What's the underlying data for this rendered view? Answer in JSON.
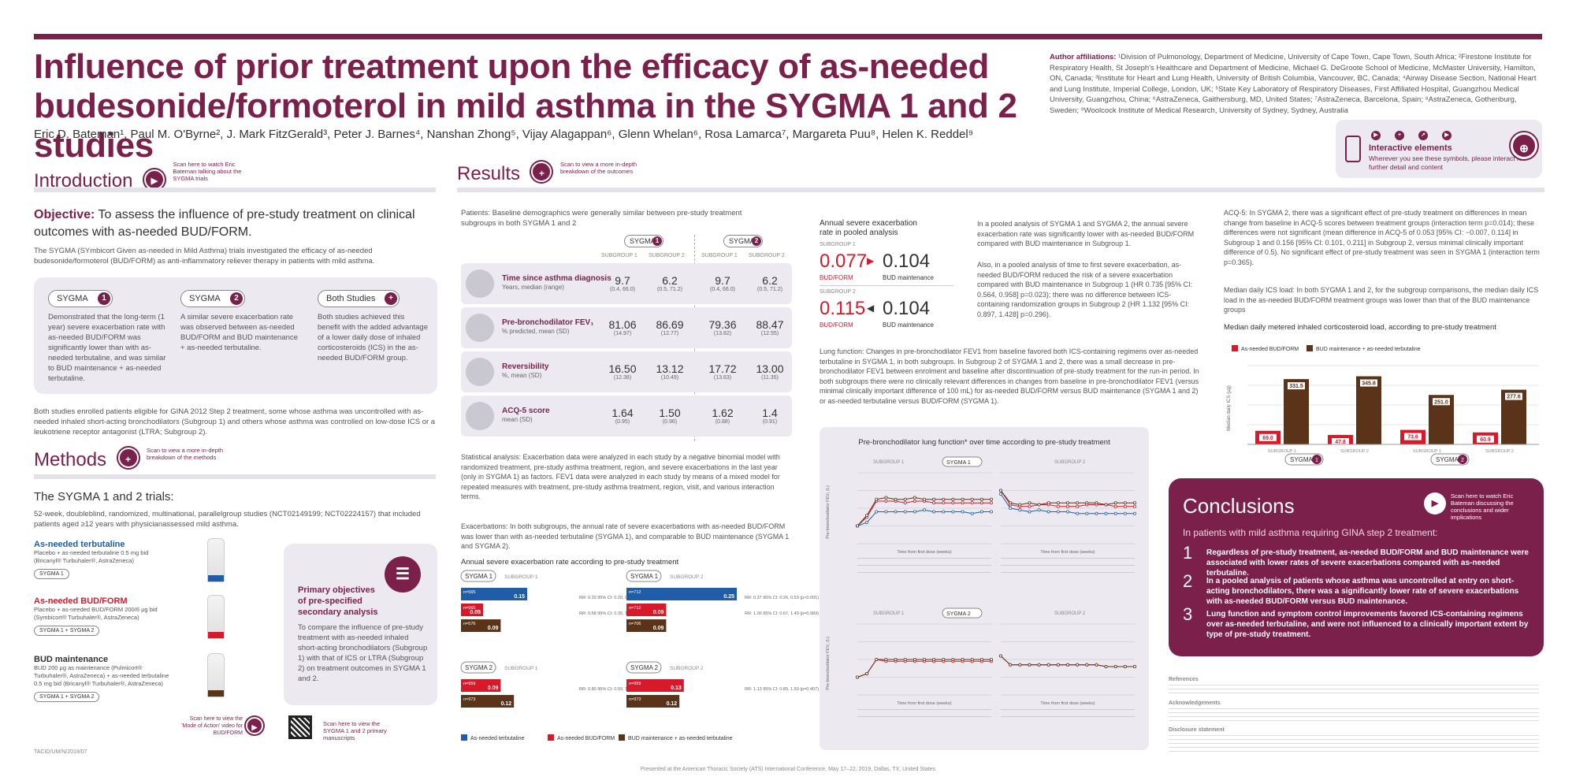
{
  "title": "Influence of prior treatment upon the efficacy of as-needed budesonide/formoterol in mild asthma in the SYGMA 1 and 2 studies",
  "authors": "Eric D. Bateman¹, Paul M. O'Byrne², J. Mark FitzGerald³, Peter J. Barnes⁴, Nanshan Zhong⁵, Vijay Alagappan⁶, Glenn Whelan⁶, Rosa Lamarca⁷, Margareta Puu⁸, Helen K. Reddel⁹",
  "affiliations_label": "Author affiliations:",
  "affiliations": "¹Division of Pulmonology, Department of Medicine, University of Cape Town, Cape Town, South Africa; ²Firestone Institute for Respiratory Health, St Joseph's Healthcare and Department of Medicine, Michael G. DeGroote School of Medicine, McMaster University, Hamilton, ON, Canada; ³Institute for Heart and Lung Health, University of British Columbia, Vancouver, BC, Canada; ⁴Airway Disease Section, National Heart and Lung Institute, Imperial College, London, UK; ⁵State Key Laboratory of Respiratory Diseases, First Affiliated Hospital, Guangzhou Medical University, Guangzhou, China; ⁶AstraZeneca, Gaithersburg, MD, United States; ⁷AstraZeneca, Barcelona, Spain; ⁸AstraZeneca, Gothenburg, Sweden; ⁹Woolcock Institute of Medical Research, University of Sydney, Sydney, Australia",
  "interactive": {
    "title": "Interactive elements",
    "sub": "Wherever you see these symbols, please interact for further detail and content"
  },
  "intro": {
    "heading": "Introduction",
    "scan": "Scan here to watch Eric Bateman talking about the SYGMA trials",
    "objective_label": "Objective:",
    "objective": "To assess the influence of pre-study treatment on clinical outcomes with as-needed BUD/FORM.",
    "body": "The SYGMA (SYmbicort Given as-needed in Mild Asthma) trials investigated the efficacy of as-needed budesonide/formoterol (BUD/FORM) as anti-inflammatory reliever therapy in patients with mild asthma.",
    "pills": [
      {
        "label": "SYGMA",
        "num": "1",
        "text": "Demonstrated that the long-term (1 year) severe exacerbation rate with as-needed BUD/FORM was significantly lower than with as-needed terbutaline, and was similar to BUD maintenance + as-needed terbutaline."
      },
      {
        "label": "SYGMA",
        "num": "2",
        "text": "A similar severe exacerbation rate was observed between as-needed BUD/FORM and BUD maintenance + as-needed terbutaline."
      },
      {
        "label": "Both Studies",
        "num": "+",
        "text": "Both studies achieved this benefit with the added advantage of a lower daily dose of inhaled corticosteroids (ICS) in the as-needed BUD/FORM group."
      }
    ],
    "eligibility": "Both studies enrolled patients eligible for GINA 2012 Step 2 treatment, some whose asthma was uncontrolled with as-needed inhaled short-acting bronchodilators (Subgroup 1) and others whose asthma was controlled on low-dose ICS or a leukotriene receptor antagonist (LTRA; Subgroup 2)."
  },
  "methods": {
    "heading": "Methods",
    "scan": "Scan to view a more in-depth breakdown of the methods",
    "trials_title": "The SYGMA 1 and 2 trials:",
    "trials_body": "52-week, doubleblind, randomized, multinational, parallelgroup studies (NCT02149199; NCT02224157) that included patients aged ≥12 years with physicianassessed mild asthma.",
    "arms": [
      {
        "name": "As-needed terbutaline",
        "desc": "Placebo + as-needed terbutaline 0.5 mg bid (Bricanyl® Turbuhaler®, AstraZeneca)",
        "tags": "SYGMA 1",
        "color": "#1f5da8"
      },
      {
        "name": "As-needed BUD/FORM",
        "desc": "Placebo + as-needed BUD/FORM 200/6 μg bid (Symbicort® Turbuhaler®, AstraZeneca)",
        "tags": "SYGMA 1 + SYGMA 2",
        "color": "#d7192a"
      },
      {
        "name": "BUD maintenance",
        "desc": "BUD 200 μg as maintenance (Pulmicort® Turbuhaler®, AstraZeneca) + as-needed terbutaline 0.5 mg bid (Bricanyl® Turbuhaler®, AstraZeneca)",
        "tags": "SYGMA 1 + SYGMA 2",
        "color": "#5a3318"
      }
    ],
    "primary_title": "Primary objectives of pre-specified secondary analysis",
    "primary_body": "To compare the influence of pre-study treatment with as-needed inhaled short-acting bronchodilators (Subgroup 1) with that of ICS or LTRA (Subgroup 2) on treatment outcomes in SYGMA 1 and 2.",
    "moa": "Scan here to view the 'Mode of Action' video for BUD/FORM",
    "qr": "Scan here to view the SYGMA 1 and 2 primary manuscripts",
    "code": "TACID/UM/N/2019/07"
  },
  "results": {
    "heading": "Results",
    "scan": "Scan to view a more in-depth breakdown of the outcomes",
    "patients": "Patients: Baseline demographics were generally similar between pre-study treatment subgroups in both SYGMA 1 and 2",
    "sub1": "SUBGROUP 1",
    "sub2": "SUBGROUP 2",
    "table": [
      {
        "label": "Time since asthma diagnosis",
        "unit": "Years, median (range)",
        "v": [
          "9.7",
          "6.2",
          "9.7",
          "6.2"
        ],
        "s": [
          "(0.4, 66.0)",
          "(0.5, 71.2)",
          "(0.4, 66.0)",
          "(0.5, 71.2)"
        ]
      },
      {
        "label": "Pre-bronchodilator FEV₁",
        "unit": "% predicted, mean (SD)",
        "v": [
          "81.06",
          "86.69",
          "79.36",
          "88.47"
        ],
        "s": [
          "(14.97)",
          "(12.77)",
          "(13.82)",
          "(12.55)"
        ]
      },
      {
        "label": "Reversibility",
        "unit": "%, mean (SD)",
        "v": [
          "16.50",
          "13.12",
          "17.72",
          "13.00"
        ],
        "s": [
          "(12.38)",
          "(10.49)",
          "(13.63)",
          "(11.35)"
        ]
      },
      {
        "label": "ACQ-5 score",
        "unit": "mean (SD)",
        "v": [
          "1.64",
          "1.50",
          "1.62",
          "1.4"
        ],
        "s": [
          "(0.95)",
          "(0.96)",
          "(0.88)",
          "(0.91)"
        ]
      }
    ],
    "statistical": "Statistical analysis: Exacerbation data were analyzed in each study by a negative binomial model with randomized treatment, pre-study asthma treatment, region, and severe exacerbations in the last year (only in SYGMA 1) as factors. FEV1 data were analyzed in each study by means of a mixed model for repeated measures with treatment, pre-study asthma treatment, region, visit, and various interaction terms.",
    "exacerbations": "Exacerbations: In both subgroups, the annual rate of severe exacerbations with as-needed BUD/FORM was lower than with as-needed terbutaline (SYGMA 1), and comparable to BUD maintenance (SYGMA 1 and SYGMA 2).",
    "exac_chart_title": "Annual severe exacerbation rate according to pre-study treatment",
    "pooled_title": "Annual severe exacerbation rate in pooled analysis",
    "pooled": [
      {
        "sub": "SUBGROUP 1",
        "a": "0.077",
        "b": "0.104"
      },
      {
        "sub": "SUBGROUP 2",
        "a": "0.115",
        "b": "0.104"
      }
    ],
    "bf": "BUD/FORM",
    "bm": "BUD maintenance",
    "pooled_text1": "In a pooled analysis of SYGMA 1 and SYGMA 2, the annual severe exacerbation rate was significantly lower with as-needed BUD/FORM compared with BUD maintenance in Subgroup 1.",
    "pooled_text2": "Also, in a pooled analysis of time to first severe exacerbation, as-needed BUD/FORM reduced the risk of a severe exacerbation compared with BUD maintenance in Subgroup 1 (HR 0.735 [95% CI: 0.564, 0.958] p=0.023); there was no difference between ICS-containing randomization groups in Subgroup 2 (HR 1.132 [95% CI: 0.897, 1.428] p=0.296).",
    "lung": "Lung function: Changes in pre-bronchodilator FEV1 from baseline favored both ICS-containing regimens over as-needed terbutaline in SYGMA 1, in both subgroups. In Subgroup 2 of SYGMA 1 and 2, there was a small decrease in pre-bronchodilator FEV1 between enrolment and baseline after discontinuation of pre-study treatment for the run-in period. In both subgroups there were no clinically relevant differences in changes from baseline in pre-bronchodilator FEV1 (versus minimal clinically important difference of 100 mL) for as-needed BUD/FORM versus BUD maintenance (SYGMA 1 and 2) or as-needed terbutaline versus BUD/FORM (SYGMA 1).",
    "fev_title": "Pre-bronchodilator lung function* over time according to pre-study treatment",
    "fev_xlabel": "Time from first dose (weeks)",
    "fev_ylabel": "Pre-bronchodilator FEV₁ (L)",
    "acq": "ACQ-5: In SYGMA 2, there was a significant effect of pre-study treatment on differences in mean change from baseline in ACQ-5 scores between treatment groups (interaction term p=0.014); these differences were not significant (mean difference in ACQ-5 of 0.053 [95% CI: −0.007, 0.114] in Subgroup 1 and 0.156 [95% CI: 0.101, 0.211] in Subgroup 2, versus minimal clinically important difference of 0.5). No significant effect of pre-study treatment was seen in SYGMA 1 (interaction term p=0.365).",
    "ics": "Median daily ICS load: In both SYGMA 1 and 2, for the subgroup comparisons, the median daily ICS load in the as-needed BUD/FORM treatment groups was lower than that of the BUD maintenance groups",
    "ics_chart_title": "Median daily metered inhaled corticosteroid load, according to pre-study treatment",
    "legend": [
      "As-needed terbutaline",
      "As-needed BUD/FORM",
      "BUD maintenance + as-needed terbutaline"
    ]
  },
  "chart_data": [
    {
      "type": "bar",
      "title": "Annual severe exacerbation rate according to pre-study treatment",
      "panels": [
        {
          "study": "SYGMA 1",
          "subgroup": "SUBGROUP 1",
          "series": [
            {
              "name": "As-needed terbutaline",
              "n": "n=565",
              "value": 0.15
            },
            {
              "name": "As-needed BUD/FORM",
              "n": "n=565",
              "value": 0.05
            },
            {
              "name": "BUD maintenance",
              "n": "n=576",
              "value": 0.09
            }
          ],
          "notes": [
            "RR: 0.33 95% CI: 0.20, 0.54 (p<0.001)",
            "RR: 0.58 95% CI: 0.35, 1.00 (p=0.049)"
          ]
        },
        {
          "study": "SYGMA 1",
          "subgroup": "SUBGROUP 2",
          "series": [
            {
              "name": "As-needed terbutaline",
              "n": "n=712",
              "value": 0.25
            },
            {
              "name": "As-needed BUD/FORM",
              "n": "n=712",
              "value": 0.09
            },
            {
              "name": "BUD maintenance",
              "n": "n=706",
              "value": 0.09
            }
          ],
          "notes": [
            "RR: 0.37 95% CI: 0.26, 0.53 (p<0.001)",
            "RR: 1.00 95% CI: 0.67, 1.49 (p=0.983)"
          ]
        },
        {
          "study": "SYGMA 2",
          "subgroup": "SUBGROUP 1",
          "series": [
            {
              "name": "As-needed BUD/FORM",
              "n": "n=959",
              "value": 0.09
            },
            {
              "name": "BUD maintenance",
              "n": "n=973",
              "value": 0.12
            }
          ],
          "notes": [
            "RR: 0.80 95% CI: 0.59, 1.07 (p=0.130)"
          ]
        },
        {
          "study": "SYGMA 2",
          "subgroup": "SUBGROUP 2",
          "series": [
            {
              "name": "As-needed BUD/FORM",
              "n": "n=959",
              "value": 0.13
            },
            {
              "name": "BUD maintenance",
              "n": "n=973",
              "value": 0.12
            }
          ],
          "notes": [
            "RR: 1.13 95% CI: 0.85, 1.50 (p=0.407)"
          ]
        }
      ]
    },
    {
      "type": "bar",
      "title": "Median daily metered inhaled corticosteroid load, according to pre-study treatment",
      "ylabel": "Median daily ICS (μg)",
      "ylim": [
        0,
        400
      ],
      "categories": [
        "SYGMA 1 Subgroup 1",
        "SYGMA 1 Subgroup 2",
        "SYGMA 2 Subgroup 1",
        "SYGMA 2 Subgroup 2"
      ],
      "series": [
        {
          "name": "As-needed BUD/FORM",
          "values": [
            69.0,
            47.8,
            73.6,
            60.9
          ]
        },
        {
          "name": "BUD maintenance + as-needed terbutaline",
          "values": [
            331.5,
            345.8,
            251.0,
            277.6
          ]
        }
      ]
    },
    {
      "type": "line",
      "title": "Pre-bronchodilator lung function over time",
      "xlabel": "Time from first dose (weeks)",
      "ylabel": "Pre-bronchodilator FEV₁ (L)",
      "ylim": [
        2.4,
        2.8
      ],
      "x": [
        -4,
        0,
        4,
        8,
        12,
        16,
        20,
        24,
        28,
        32,
        36,
        40,
        44,
        48,
        52
      ],
      "panels": [
        {
          "study": "SYGMA 1",
          "subgroup": "SUBGROUP 1",
          "series": [
            {
              "name": "As-needed terbutaline",
              "values": [
                2.5,
                2.52,
                2.58,
                2.58,
                2.58,
                2.58,
                2.58,
                2.59,
                2.58,
                2.58,
                2.58,
                2.58,
                2.57,
                2.58,
                2.58
              ]
            },
            {
              "name": "As-needed BUD/FORM",
              "values": [
                2.5,
                2.55,
                2.64,
                2.64,
                2.64,
                2.63,
                2.64,
                2.64,
                2.63,
                2.63,
                2.63,
                2.63,
                2.63,
                2.63,
                2.63
              ]
            },
            {
              "name": "BUD maintenance",
              "values": [
                2.5,
                2.56,
                2.65,
                2.66,
                2.65,
                2.65,
                2.66,
                2.65,
                2.65,
                2.65,
                2.65,
                2.65,
                2.65,
                2.65,
                2.65
              ]
            }
          ]
        },
        {
          "study": "SYGMA 1",
          "subgroup": "SUBGROUP 2",
          "series": [
            {
              "name": "As-needed terbutaline",
              "values": [
                2.68,
                2.6,
                2.59,
                2.58,
                2.59,
                2.58,
                2.58,
                2.58,
                2.57,
                2.57,
                2.57,
                2.57,
                2.57,
                2.57,
                2.57
              ]
            },
            {
              "name": "As-needed BUD/FORM",
              "values": [
                2.7,
                2.62,
                2.61,
                2.61,
                2.62,
                2.62,
                2.61,
                2.61,
                2.61,
                2.62,
                2.62,
                2.62,
                2.61,
                2.61,
                2.61
              ]
            },
            {
              "name": "BUD maintenance",
              "values": [
                2.7,
                2.63,
                2.62,
                2.63,
                2.62,
                2.63,
                2.63,
                2.63,
                2.63,
                2.63,
                2.63,
                2.62,
                2.63,
                2.63,
                2.63
              ]
            }
          ]
        },
        {
          "study": "SYGMA 2",
          "subgroup": "SUBGROUP 1",
          "series": [
            {
              "name": "As-needed BUD/FORM",
              "values": [
                2.5,
                2.52,
                2.6,
                2.59,
                2.59,
                2.59,
                2.59,
                2.59,
                2.59,
                2.59,
                2.59,
                2.59,
                2.59,
                2.59,
                2.59
              ]
            },
            {
              "name": "BUD maintenance",
              "values": [
                2.5,
                2.52,
                2.6,
                2.6,
                2.6,
                2.6,
                2.6,
                2.6,
                2.6,
                2.6,
                2.6,
                2.6,
                2.6,
                2.6,
                2.6
              ]
            }
          ]
        },
        {
          "study": "SYGMA 2",
          "subgroup": "SUBGROUP 2",
          "series": [
            {
              "name": "As-needed BUD/FORM",
              "values": [
                2.62,
                2.57,
                2.57,
                2.57,
                2.57,
                2.57,
                2.57,
                2.57,
                2.57,
                2.57,
                2.57,
                2.56,
                2.56,
                2.56,
                2.56
              ]
            },
            {
              "name": "BUD maintenance",
              "values": [
                2.62,
                2.57,
                2.57,
                2.57,
                2.57,
                2.57,
                2.57,
                2.57,
                2.57,
                2.57,
                2.57,
                2.56,
                2.56,
                2.56,
                2.56
              ]
            }
          ]
        }
      ]
    }
  ],
  "conclusions": {
    "heading": "Conclusions",
    "scan": "Scan here to watch Eric Bateman discussing the conclusions and wider implications",
    "intro": "In patients with mild asthma requiring GINA step 2 treatment:",
    "points": [
      {
        "n": "1",
        "t": "Regardless of pre-study treatment, as-needed BUD/FORM and BUD maintenance were associated with lower rates of severe exacerbations compared with as-needed terbutaline."
      },
      {
        "n": "2",
        "t": "In a pooled analysis of patients whose asthma was uncontrolled at entry on short-acting bronchodilators, there was a significantly lower rate of severe exacerbations with as-needed BUD/FORM versus BUD maintenance."
      },
      {
        "n": "3",
        "t": "Lung function and symptom control improvements favored ICS-containing regimens over as-needed terbutaline, and were not influenced to a clinically important extent by type of pre-study treatment."
      }
    ]
  },
  "refs": {
    "references": "References",
    "acknowledgements": "Acknowledgements",
    "disclosure": "Disclosure statement"
  },
  "footer": "Presented at the American Thoracic Society (ATS) International Conference, May 17–22, 2019, Dallas, TX, United States",
  "colors": {
    "brand": "#7b1f4b",
    "terbutaline": "#1f5da8",
    "budform": "#d7192a",
    "budmaint": "#5a3318"
  }
}
